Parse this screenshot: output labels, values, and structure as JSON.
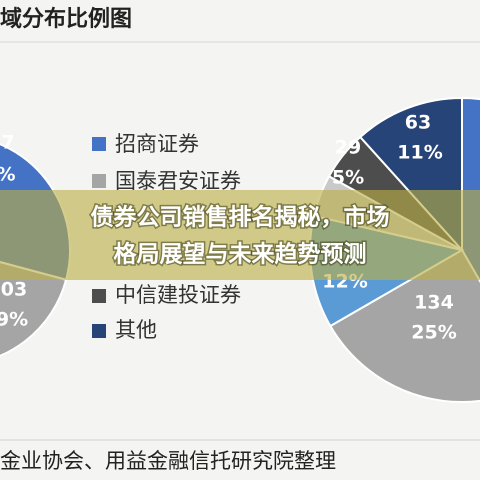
{
  "header": {
    "title": "域分布比例图"
  },
  "legend": {
    "items": [
      "招商证券",
      "国泰君安证券",
      "中信建投证券",
      "其他"
    ]
  },
  "left_pie": {
    "labels": [
      "7",
      "%",
      "03",
      "9%"
    ]
  },
  "right_pie": {
    "labels": [
      "63",
      "11%",
      "29",
      "5%",
      "12%",
      "134",
      "25%"
    ]
  },
  "footer": {
    "source": "金业协会、用益金融信托研究院整理"
  },
  "overlay": {
    "title_lines": [
      "债券公司销售排名揭秘，市场",
      "格局展望与未来趋势预测"
    ]
  }
}
